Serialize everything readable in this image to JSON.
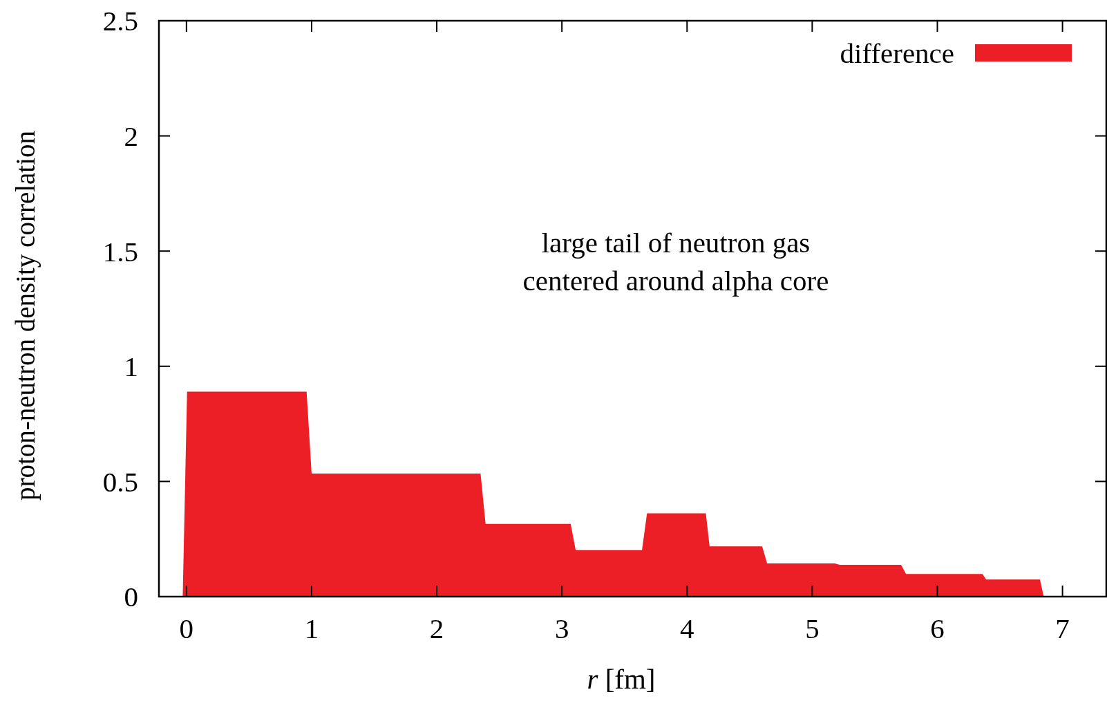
{
  "chart_data": {
    "type": "area",
    "xlabel": "r [fm]",
    "ylabel": "proton-neutron density correlation",
    "xlim": [
      -0.22,
      7.35
    ],
    "ylim": [
      0,
      2.5
    ],
    "xticks": [
      0,
      1,
      2,
      3,
      4,
      5,
      6,
      7
    ],
    "yticks": [
      0,
      0.5,
      1,
      1.5,
      2,
      2.5
    ],
    "legend": "top right",
    "grid": false,
    "annotations": [
      "large tail of neutron gas\ncentered around alpha core"
    ],
    "series": [
      {
        "name": "difference",
        "color": "#ed1f26",
        "x": [
          -0.03,
          0.005,
          0.96,
          1.0,
          2.35,
          2.39,
          3.07,
          3.11,
          3.64,
          3.68,
          4.15,
          4.18,
          4.6,
          4.64,
          5.18,
          5.22,
          5.71,
          5.75,
          6.36,
          6.39,
          6.82,
          6.85
        ],
        "values": [
          0,
          0.89,
          0.89,
          0.534,
          0.534,
          0.316,
          0.316,
          0.202,
          0.202,
          0.362,
          0.362,
          0.218,
          0.218,
          0.144,
          0.144,
          0.138,
          0.138,
          0.098,
          0.098,
          0.074,
          0.074,
          0
        ]
      }
    ]
  }
}
